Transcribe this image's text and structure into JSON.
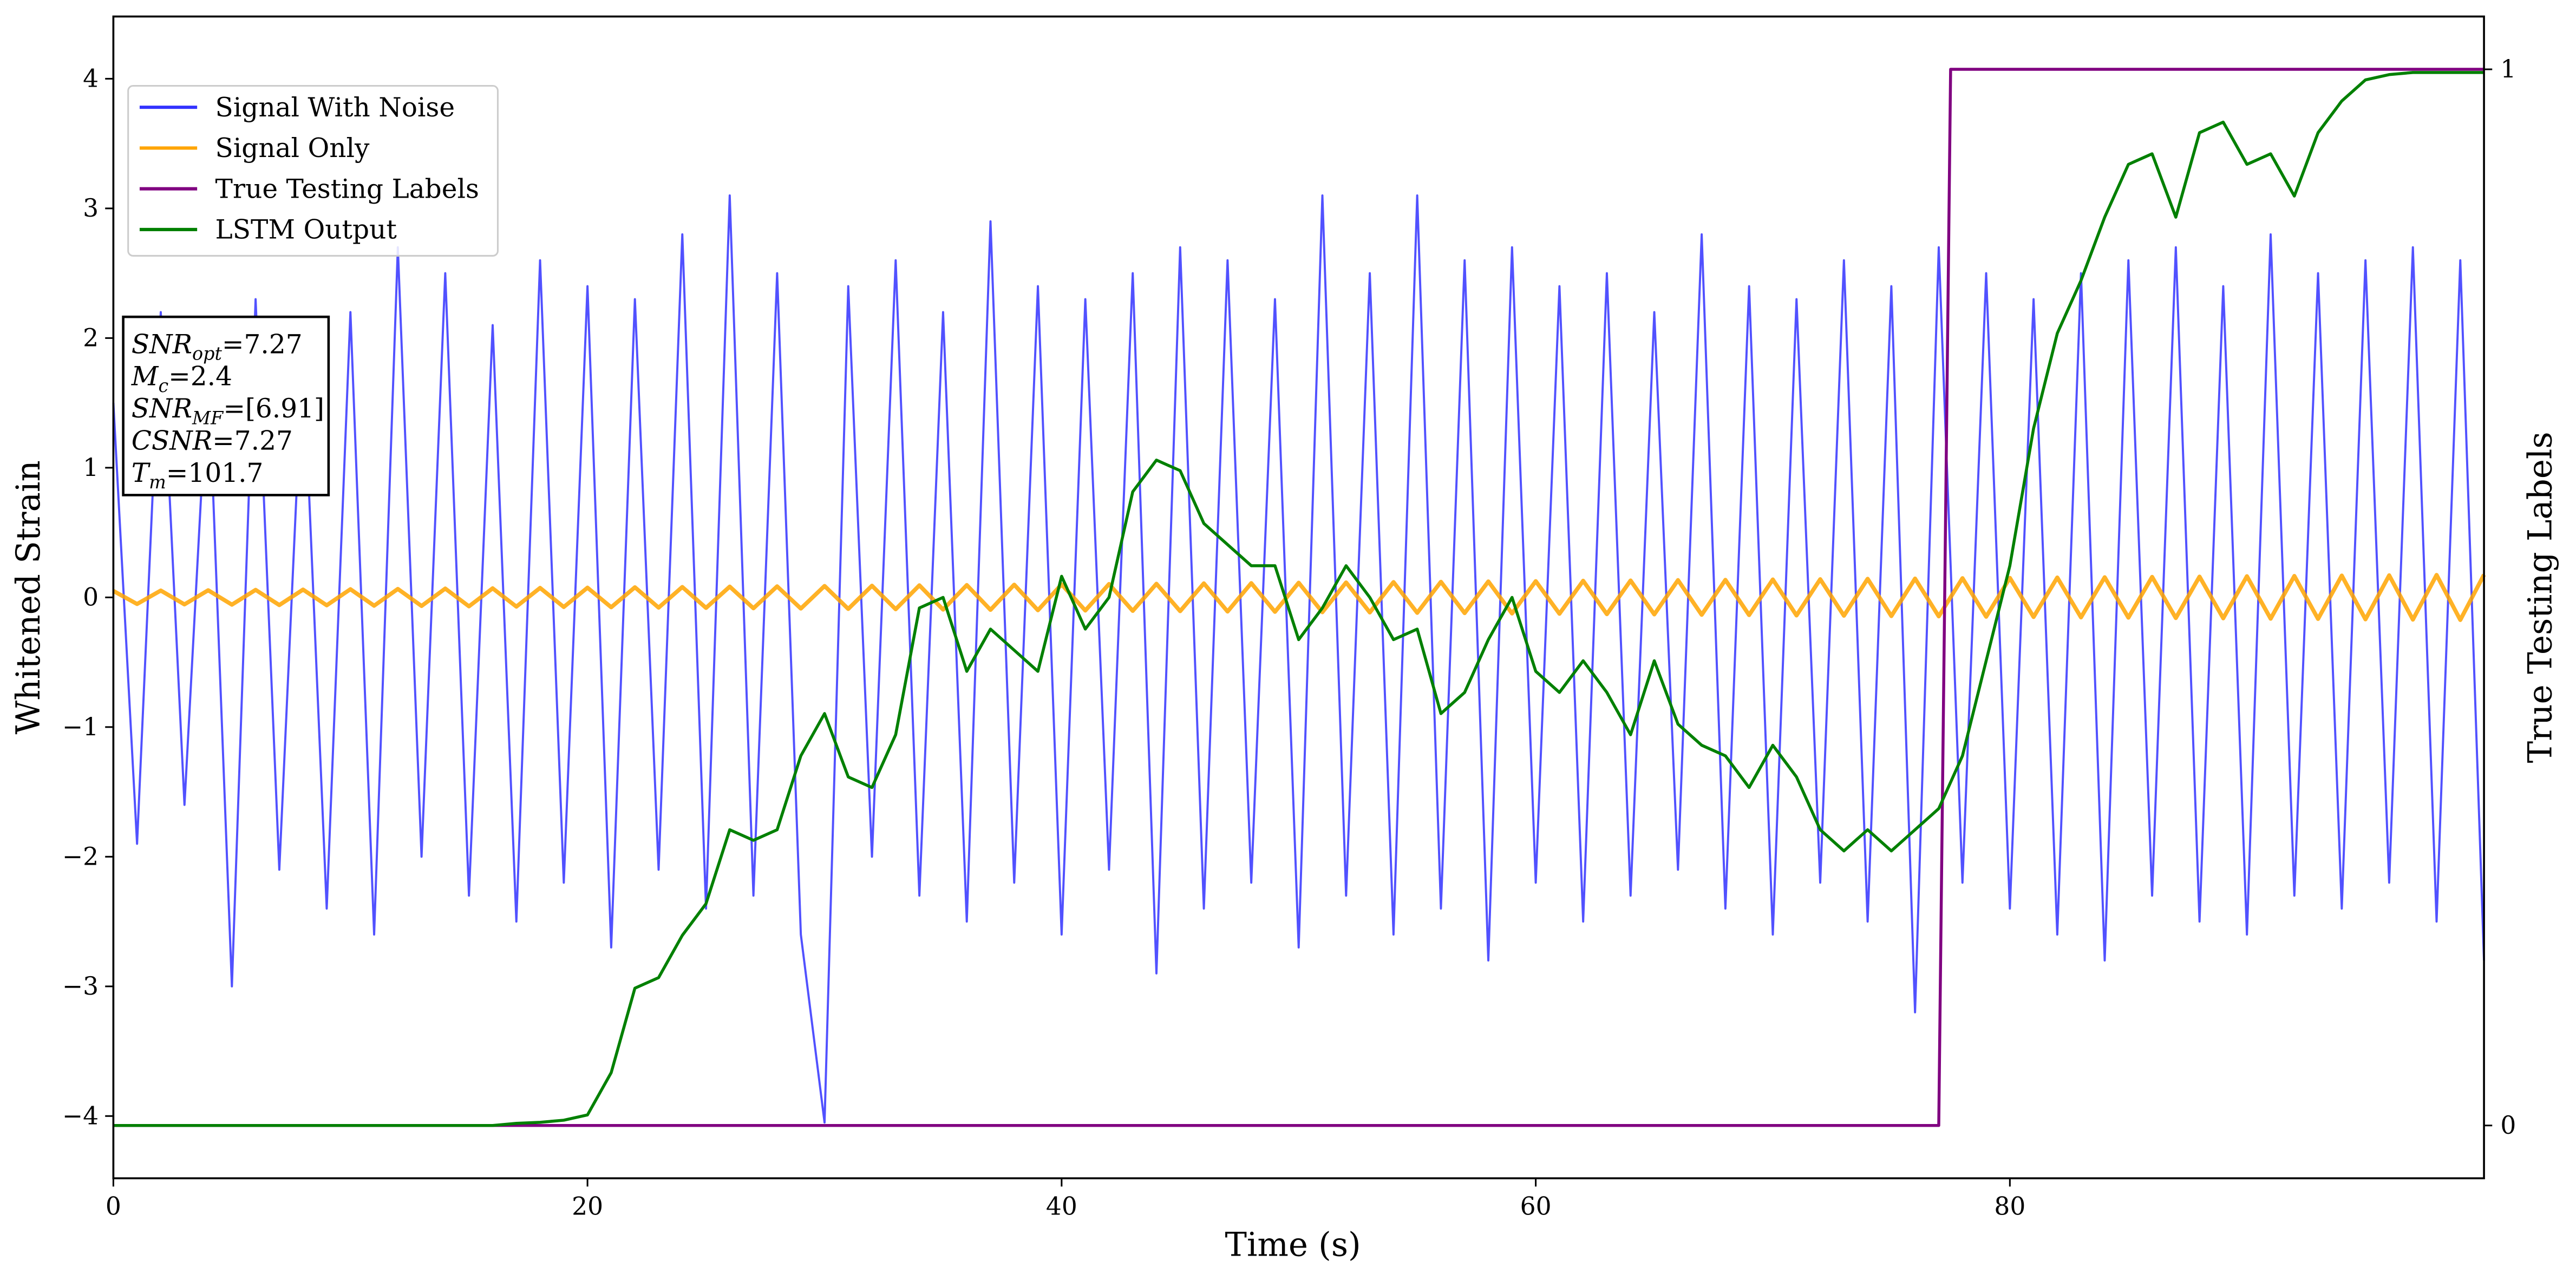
{
  "chart_data": {
    "type": "line",
    "x_label": "Time (s)",
    "y_label": "Whitened Strain",
    "y2_label": "True Testing Labels",
    "x": [
      0,
      1,
      2,
      3,
      4,
      5,
      6,
      7,
      8,
      9,
      10,
      11,
      12,
      13,
      14,
      15,
      16,
      17,
      18,
      19,
      20,
      21,
      22,
      23,
      24,
      25,
      26,
      27,
      28,
      29,
      30,
      31,
      32,
      33,
      34,
      35,
      36,
      37,
      38,
      39,
      40,
      41,
      42,
      43,
      44,
      45,
      46,
      47,
      48,
      49,
      50,
      51,
      52,
      53,
      54,
      55,
      56,
      57,
      58,
      59,
      60,
      61,
      62,
      63,
      64,
      65,
      66,
      67,
      68,
      69,
      70,
      71,
      72,
      73,
      74,
      75,
      76,
      77,
      78,
      79,
      80,
      81,
      82,
      83,
      84,
      85,
      86,
      87,
      88,
      89,
      90,
      91,
      92,
      93,
      94,
      95,
      96,
      97,
      98,
      99,
      100
    ],
    "xlim": [
      0,
      100
    ],
    "xticks": [
      0,
      20,
      40,
      60,
      80
    ],
    "ylim": [
      -4.48,
      4.48
    ],
    "yticks": [
      {
        "value": -4,
        "label": "−4"
      },
      {
        "value": -3,
        "label": "−3"
      },
      {
        "value": -2,
        "label": "−2"
      },
      {
        "value": -1,
        "label": "−1"
      },
      0,
      1,
      2,
      3,
      4
    ],
    "y2lim": [
      -0.05,
      1.05
    ],
    "y2ticks": [
      0,
      1
    ],
    "legend": "upper left",
    "series": [
      {
        "name": "Signal With Noise",
        "color": "#3333ff",
        "values": [
          1.5,
          -1.9,
          2.2,
          -1.6,
          1.8,
          -3.0,
          2.3,
          -2.1,
          1.9,
          -2.4,
          2.2,
          -2.6,
          2.7,
          -2.0,
          2.5,
          -2.3,
          2.1,
          -2.5,
          2.6,
          -2.2,
          2.4,
          -2.7,
          2.3,
          -2.1,
          2.8,
          -2.4,
          3.1,
          -2.3,
          2.5,
          -2.6,
          -4.05,
          2.4,
          -2.0,
          2.6,
          -2.3,
          2.2,
          -2.5,
          2.9,
          -2.2,
          2.4,
          -2.6,
          2.3,
          -2.1,
          2.5,
          -2.9,
          2.7,
          -2.4,
          2.6,
          -2.2,
          2.3,
          -2.7,
          3.1,
          -2.3,
          2.5,
          -2.6,
          3.1,
          -2.4,
          2.6,
          -2.8,
          2.7,
          -2.2,
          2.4,
          -2.5,
          2.5,
          -2.3,
          2.2,
          -2.1,
          2.8,
          -2.4,
          2.4,
          -2.6,
          2.3,
          -2.2,
          2.6,
          -2.5,
          2.4,
          -3.2,
          2.7,
          -2.2,
          2.5,
          -2.4,
          2.3,
          -2.6,
          2.5,
          -2.8,
          2.6,
          -2.3,
          2.7,
          -2.5,
          2.4,
          -2.6,
          2.8,
          -2.3,
          2.5,
          -2.4,
          2.6,
          -2.2,
          2.7,
          -2.5,
          2.6,
          -2.8
        ]
      },
      {
        "name": "Signal Only",
        "color": "#ffa500",
        "values": [
          0.05,
          -0.051,
          0.053,
          -0.054,
          0.055,
          -0.056,
          0.058,
          -0.059,
          0.06,
          -0.061,
          0.063,
          -0.064,
          0.065,
          -0.066,
          0.068,
          -0.069,
          0.07,
          -0.071,
          0.073,
          -0.074,
          0.075,
          -0.076,
          0.078,
          -0.079,
          0.08,
          -0.081,
          0.083,
          -0.084,
          0.085,
          -0.086,
          0.088,
          -0.089,
          0.09,
          -0.091,
          0.093,
          -0.094,
          0.095,
          -0.096,
          0.098,
          -0.099,
          0.1,
          -0.101,
          0.103,
          -0.104,
          0.105,
          -0.106,
          0.108,
          -0.109,
          0.11,
          -0.111,
          0.113,
          -0.114,
          0.115,
          -0.116,
          0.118,
          -0.119,
          0.12,
          -0.121,
          0.123,
          -0.124,
          0.125,
          -0.126,
          0.128,
          -0.129,
          0.13,
          -0.131,
          0.133,
          -0.134,
          0.135,
          -0.136,
          0.138,
          -0.139,
          0.14,
          -0.141,
          0.143,
          -0.144,
          0.145,
          -0.146,
          0.148,
          -0.149,
          0.15,
          -0.151,
          0.153,
          -0.154,
          0.155,
          -0.156,
          0.158,
          -0.159,
          0.16,
          -0.161,
          0.163,
          -0.164,
          0.165,
          -0.166,
          0.168,
          -0.169,
          0.17,
          -0.171,
          0.173,
          -0.174,
          0.175
        ]
      },
      {
        "name": "True Testing Labels",
        "color": "#800080",
        "axis": "y2",
        "x": [
          0,
          77,
          77.5,
          100
        ],
        "values": [
          0,
          0,
          1,
          1
        ]
      },
      {
        "name": "LSTM Output",
        "color": "#008000",
        "axis": "y2",
        "values": [
          0,
          0,
          0,
          0,
          0,
          0,
          0,
          0,
          0,
          0,
          0,
          0,
          0,
          0,
          0,
          0,
          0,
          0.002,
          0.003,
          0.005,
          0.01,
          0.05,
          0.13,
          0.14,
          0.18,
          0.21,
          0.28,
          0.27,
          0.28,
          0.35,
          0.39,
          0.33,
          0.32,
          0.37,
          0.49,
          0.5,
          0.43,
          0.47,
          0.45,
          0.43,
          0.52,
          0.47,
          0.5,
          0.6,
          0.63,
          0.62,
          0.57,
          0.55,
          0.53,
          0.53,
          0.46,
          0.49,
          0.53,
          0.5,
          0.46,
          0.47,
          0.39,
          0.41,
          0.46,
          0.5,
          0.43,
          0.41,
          0.44,
          0.41,
          0.37,
          0.44,
          0.38,
          0.36,
          0.35,
          0.32,
          0.36,
          0.33,
          0.28,
          0.26,
          0.28,
          0.26,
          0.28,
          0.3,
          0.35,
          0.44,
          0.53,
          0.66,
          0.75,
          0.8,
          0.86,
          0.91,
          0.92,
          0.86,
          0.94,
          0.95,
          0.91,
          0.92,
          0.88,
          0.94,
          0.97,
          0.99,
          0.995,
          0.997,
          0.997,
          0.997,
          0.997
        ]
      }
    ],
    "annotation": [
      {
        "symbol": "SNR",
        "sub": "opt",
        "text": "=7.27"
      },
      {
        "symbol": "M",
        "sub": "c",
        "text": "=2.4"
      },
      {
        "symbol": "SNR",
        "sub": "MF",
        "text": "=[6.91]"
      },
      {
        "symbol": "CSNR",
        "text": "=7.27"
      },
      {
        "symbol": "T",
        "sub": "m",
        "text": "=101.7"
      }
    ]
  }
}
